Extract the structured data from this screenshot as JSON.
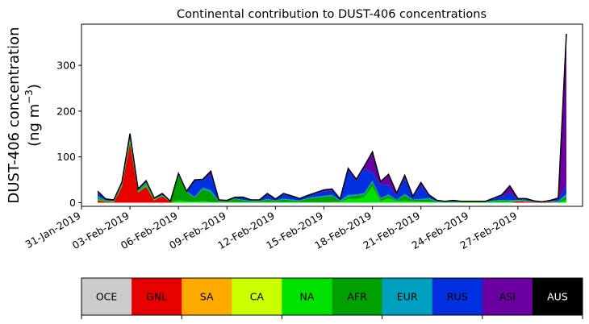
{
  "chart_data": {
    "type": "area",
    "stacked": true,
    "title": "Continental contribution to DUST-406 concentrations",
    "ylabel_line1": "DUST-406 concentration",
    "ylabel_line2": "(ng m",
    "ylabel_sup": "−3",
    "ylabel_close": ")",
    "ylim": [
      -8,
      390
    ],
    "yticks": [
      0,
      100,
      200,
      300
    ],
    "xlim": [
      "2019-01-31",
      "2019-03-03"
    ],
    "xticks": [
      "2019-01-31",
      "2019-02-03",
      "2019-02-06",
      "2019-02-09",
      "2019-02-12",
      "2019-02-15",
      "2019-02-18",
      "2019-02-21",
      "2019-02-24",
      "2019-02-27"
    ],
    "xtick_labels": [
      "31-Jan-2019",
      "03-Feb-2019",
      "06-Feb-2019",
      "09-Feb-2019",
      "12-Feb-2019",
      "15-Feb-2019",
      "18-Feb-2019",
      "21-Feb-2019",
      "24-Feb-2019",
      "27-Feb-2019"
    ],
    "x": [
      "2019-02-01",
      "2019-02-01T12:00",
      "2019-02-02",
      "2019-02-02T12:00",
      "2019-02-03",
      "2019-02-03T12:00",
      "2019-02-04",
      "2019-02-04T12:00",
      "2019-02-05",
      "2019-02-05T12:00",
      "2019-02-06",
      "2019-02-06T12:00",
      "2019-02-07",
      "2019-02-07T12:00",
      "2019-02-08",
      "2019-02-08T12:00",
      "2019-02-09",
      "2019-02-09T12:00",
      "2019-02-10",
      "2019-02-10T12:00",
      "2019-02-11",
      "2019-02-11T12:00",
      "2019-02-12",
      "2019-02-12T12:00",
      "2019-02-13",
      "2019-02-13T12:00",
      "2019-02-14",
      "2019-02-14T12:00",
      "2019-02-15",
      "2019-02-15T12:00",
      "2019-02-16",
      "2019-02-16T12:00",
      "2019-02-17",
      "2019-02-17T12:00",
      "2019-02-18",
      "2019-02-18T12:00",
      "2019-02-19",
      "2019-02-19T12:00",
      "2019-02-20",
      "2019-02-20T12:00",
      "2019-02-21",
      "2019-02-21T12:00",
      "2019-02-22",
      "2019-02-22T12:00",
      "2019-02-23",
      "2019-02-23T12:00",
      "2019-02-24",
      "2019-02-24T12:00",
      "2019-02-25",
      "2019-02-25T12:00",
      "2019-02-26",
      "2019-02-26T12:00",
      "2019-02-27",
      "2019-02-27T12:00",
      "2019-02-28",
      "2019-02-28T12:00",
      "2019-03-01",
      "2019-03-01T12:00",
      "2019-03-02"
    ],
    "series": [
      {
        "name": "OCE",
        "color": "#cccccc",
        "values": [
          0,
          0,
          0,
          0,
          0,
          0,
          0,
          0,
          0,
          0,
          0,
          0,
          0,
          0,
          0,
          0,
          0,
          0,
          0,
          0,
          0,
          0,
          0,
          0,
          0,
          0,
          0,
          0,
          0,
          0,
          0,
          0,
          0,
          0,
          0,
          0,
          0,
          0,
          0,
          0,
          0,
          0,
          0,
          0,
          0,
          0,
          0,
          0,
          0,
          0,
          0,
          0,
          0,
          0,
          0,
          0,
          0,
          0,
          0
        ]
      },
      {
        "name": "GNL",
        "color": "#e60000",
        "values": [
          5,
          2,
          1,
          35,
          130,
          22,
          35,
          5,
          14,
          1,
          0,
          0,
          0,
          0,
          0,
          0,
          0,
          0,
          0,
          0,
          0,
          0,
          0,
          0,
          0,
          0,
          0,
          0,
          0,
          0,
          0,
          0,
          0,
          0,
          0,
          0,
          0,
          0,
          0,
          0,
          0,
          0,
          0,
          0,
          0,
          0,
          0,
          0,
          0,
          0,
          0,
          0,
          3,
          2,
          1,
          1,
          1,
          0,
          0
        ]
      },
      {
        "name": "SA",
        "color": "#ffaa00",
        "values": [
          0,
          0,
          0,
          0,
          0,
          0,
          0,
          0,
          0,
          0,
          0,
          0,
          0,
          0,
          0,
          0,
          0,
          0,
          0,
          0,
          0,
          0,
          0,
          0,
          0,
          0,
          0,
          0,
          0,
          0,
          0,
          0,
          0,
          0,
          0,
          0,
          0,
          0,
          0,
          0,
          0,
          0,
          0,
          0,
          0,
          0,
          0,
          0,
          0,
          0,
          0,
          0,
          0,
          0,
          0,
          0,
          0,
          0,
          0
        ]
      },
      {
        "name": "CA",
        "color": "#cbff00",
        "values": [
          0,
          0,
          0,
          0,
          0,
          0,
          0,
          0,
          0,
          0,
          0,
          0,
          0,
          0,
          0,
          0,
          0,
          0,
          0,
          0,
          0,
          0,
          0,
          0,
          0,
          0,
          0,
          0,
          0,
          0,
          0,
          0,
          0,
          0,
          0,
          0,
          0,
          0,
          0,
          0,
          0,
          0,
          0,
          0,
          0,
          0,
          0,
          0,
          0,
          0,
          0,
          0,
          0,
          0,
          0,
          0,
          0,
          0,
          0
        ]
      },
      {
        "name": "NA",
        "color": "#00e100",
        "values": [
          3,
          1,
          1,
          2,
          5,
          2,
          4,
          1,
          1,
          0,
          5,
          3,
          2,
          4,
          1,
          1,
          1,
          1,
          1,
          1,
          1,
          1,
          1,
          1,
          1,
          1,
          1,
          1,
          1,
          1,
          2,
          8,
          8,
          12,
          35,
          3,
          10,
          3,
          4,
          3,
          2,
          2,
          1,
          1,
          1,
          1,
          1,
          1,
          1,
          2,
          2,
          2,
          1,
          1,
          0,
          0,
          1,
          0,
          6
        ]
      },
      {
        "name": "AFR",
        "color": "#00a000",
        "values": [
          4,
          1,
          1,
          2,
          4,
          2,
          3,
          1,
          1,
          1,
          55,
          20,
          9,
          25,
          22,
          2,
          2,
          7,
          4,
          2,
          2,
          6,
          3,
          6,
          4,
          3,
          8,
          10,
          12,
          14,
          2,
          4,
          8,
          6,
          10,
          5,
          6,
          2,
          12,
          3,
          4,
          6,
          1,
          1,
          1,
          1,
          1,
          1,
          1,
          2,
          3,
          2,
          1,
          1,
          1,
          0,
          0,
          2,
          8
        ]
      },
      {
        "name": "EUR",
        "color": "#00a0c0",
        "values": [
          2,
          1,
          1,
          2,
          4,
          1,
          2,
          1,
          1,
          0,
          2,
          2,
          2,
          4,
          4,
          1,
          0,
          1,
          1,
          1,
          1,
          1,
          1,
          2,
          2,
          1,
          1,
          2,
          2,
          2,
          1,
          5,
          2,
          3,
          3,
          2,
          2,
          1,
          3,
          1,
          2,
          2,
          1,
          0,
          0,
          0,
          0,
          0,
          0,
          1,
          1,
          2,
          1,
          1,
          0,
          0,
          0,
          2,
          5
        ]
      },
      {
        "name": "RUS",
        "color": "#0030e0",
        "values": [
          8,
          2,
          1,
          3,
          4,
          2,
          2,
          1,
          2,
          1,
          1,
          0,
          36,
          16,
          34,
          1,
          1,
          2,
          5,
          1,
          1,
          10,
          2,
          9,
          7,
          3,
          5,
          7,
          10,
          9,
          2,
          55,
          30,
          54,
          18,
          30,
          20,
          10,
          35,
          5,
          30,
          5,
          1,
          1,
          2,
          1,
          1,
          1,
          1,
          3,
          8,
          15,
          2,
          2,
          1,
          0,
          1,
          3,
          18
        ]
      },
      {
        "name": "ASI",
        "color": "#6a00a0",
        "values": [
          3,
          1,
          1,
          1,
          4,
          1,
          2,
          1,
          1,
          0,
          1,
          0,
          1,
          2,
          8,
          1,
          1,
          1,
          1,
          1,
          1,
          2,
          1,
          2,
          1,
          1,
          1,
          2,
          3,
          4,
          1,
          3,
          3,
          5,
          45,
          6,
          24,
          5,
          6,
          2,
          6,
          2,
          1,
          0,
          1,
          0,
          0,
          0,
          0,
          2,
          3,
          16,
          1,
          2,
          1,
          1,
          2,
          3,
          332
        ]
      },
      {
        "name": "AUS",
        "color": "#000000",
        "values": [
          0,
          0,
          0,
          0,
          0,
          0,
          0,
          0,
          0,
          0,
          0,
          0,
          0,
          0,
          0,
          0,
          0,
          0,
          0,
          0,
          0,
          0,
          0,
          0,
          0,
          0,
          0,
          0,
          0,
          0,
          0,
          0,
          0,
          0,
          0,
          0,
          0,
          0,
          0,
          0,
          0,
          0,
          0,
          0,
          0,
          0,
          0,
          0,
          0,
          0,
          0,
          0,
          0,
          0,
          0,
          0,
          0,
          0,
          0
        ]
      }
    ]
  },
  "legend": {
    "items": [
      {
        "label": "OCE",
        "color": "#cccccc"
      },
      {
        "label": "GNL",
        "color": "#e60000"
      },
      {
        "label": "SA",
        "color": "#ffaa00"
      },
      {
        "label": "CA",
        "color": "#cbff00"
      },
      {
        "label": "NA",
        "color": "#00e100"
      },
      {
        "label": "AFR",
        "color": "#00a000"
      },
      {
        "label": "EUR",
        "color": "#00a0c0"
      },
      {
        "label": "RUS",
        "color": "#0030e0"
      },
      {
        "label": "ASI",
        "color": "#6a00a0"
      },
      {
        "label": "AUS",
        "color": "#000000"
      }
    ]
  }
}
